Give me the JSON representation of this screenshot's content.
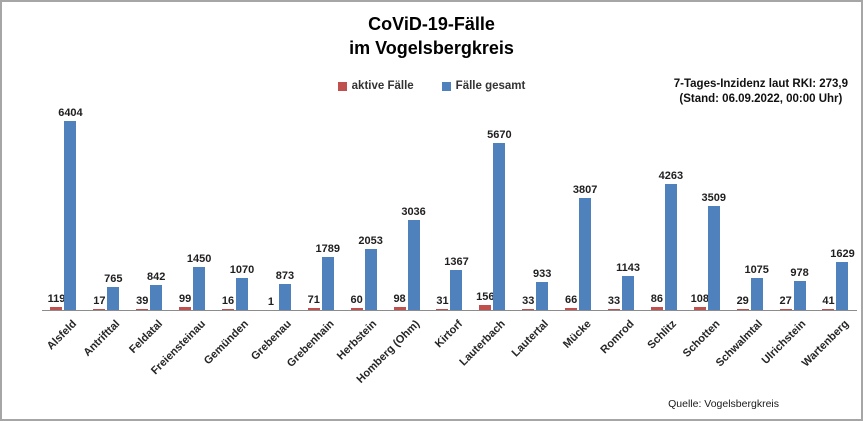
{
  "title": {
    "line1": "CoViD-19-Fälle",
    "line2": "im Vogelsbergkreis"
  },
  "annotation": {
    "line1": "7-Tages-Inzidenz laut RKI: 273,9",
    "line2": "(Stand: 06.09.2022, 00:00 Uhr)"
  },
  "source": "Quelle: Vogelsbergkreis",
  "colors": {
    "active": "#c0504d",
    "total": "#4f81bd",
    "axis": "#8c8c8c"
  },
  "chart_data": {
    "type": "bar",
    "title": "CoViD-19-Fälle im Vogelsbergkreis",
    "categories": [
      "Alsfeld",
      "Antrifttal",
      "Feldatal",
      "Freiensteinau",
      "Gemünden",
      "Grebenau",
      "Grebenhain",
      "Herbstein",
      "Homberg (Ohm)",
      "Kirtorf",
      "Lauterbach",
      "Lautertal",
      "Mücke",
      "Romrod",
      "Schlitz",
      "Schotten",
      "Schwalmtal",
      "Ulrichstein",
      "Wartenberg"
    ],
    "series": [
      {
        "name": "aktive Fälle",
        "color": "#c0504d",
        "values": [
          119,
          17,
          39,
          99,
          16,
          1,
          71,
          60,
          98,
          31,
          156,
          33,
          66,
          33,
          86,
          108,
          29,
          27,
          41
        ]
      },
      {
        "name": "Fälle gesamt",
        "color": "#4f81bd",
        "values": [
          6404,
          765,
          842,
          1450,
          1070,
          873,
          1789,
          2053,
          3036,
          1367,
          5670,
          933,
          3807,
          1143,
          4263,
          3509,
          1075,
          978,
          1629
        ]
      }
    ],
    "ylim": [
      0,
      6404
    ],
    "grid": false,
    "legend_position": "top-center",
    "data_labels": true,
    "x_tick_rotation": -45,
    "xlabel": "",
    "ylabel": ""
  }
}
